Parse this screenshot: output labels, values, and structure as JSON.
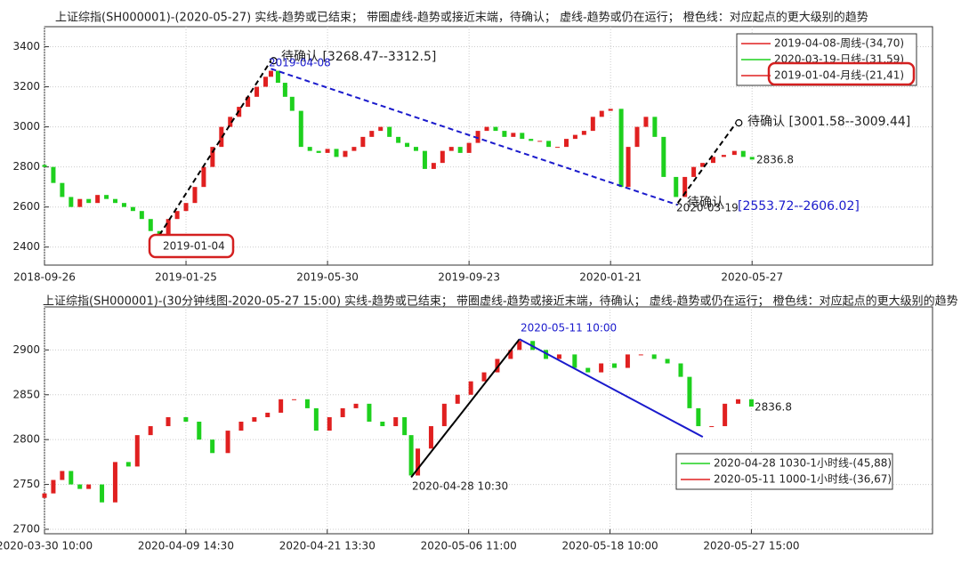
{
  "chart_data": [
    {
      "type": "candlestick",
      "title": "上证综指(SH000001)-(2020-05-27)  实线-趋势或已结束；  带圈虚线-趋势或接近末端，待确认；  虚线-趋势或仍在运行；  橙色线：对应起点的更大级别的趋势",
      "xlim": [
        0,
        502
      ],
      "ylim": [
        2310,
        3500
      ],
      "xticks": [
        {
          "value": 0,
          "label": "2018-09-26"
        },
        {
          "value": 80,
          "label": "2019-01-25"
        },
        {
          "value": 160,
          "label": "2019-05-30"
        },
        {
          "value": 240,
          "label": "2019-09-23"
        },
        {
          "value": 320,
          "label": "2020-01-21"
        },
        {
          "value": 400,
          "label": "2020-05-27"
        }
      ],
      "yticks": [
        2400,
        2600,
        2800,
        3000,
        3200,
        3400
      ],
      "grid": true,
      "up_color": "#e02020",
      "down_color": "#1ed01e",
      "x": [
        0,
        5,
        10,
        15,
        20,
        25,
        30,
        35,
        40,
        45,
        50,
        55,
        60,
        65,
        70,
        75,
        80,
        85,
        90,
        95,
        100,
        105,
        110,
        115,
        120,
        125,
        128,
        132,
        136,
        140,
        145,
        150,
        155,
        160,
        165,
        170,
        175,
        180,
        185,
        190,
        195,
        200,
        205,
        210,
        215,
        220,
        225,
        230,
        235,
        240,
        245,
        250,
        255,
        260,
        265,
        270,
        275,
        280,
        285,
        290,
        295,
        300,
        305,
        310,
        315,
        320,
        326,
        330,
        335,
        340,
        345,
        350,
        357,
        362,
        367,
        372,
        378,
        384,
        390,
        395,
        400
      ],
      "open": [
        2810,
        2800,
        2720,
        2650,
        2600,
        2640,
        2620,
        2660,
        2640,
        2620,
        2600,
        2580,
        2540,
        2480,
        2460,
        2540,
        2580,
        2620,
        2700,
        2800,
        2900,
        3000,
        3050,
        3100,
        3150,
        3200,
        3250,
        3280,
        3220,
        3150,
        3080,
        2900,
        2880,
        2870,
        2890,
        2850,
        2880,
        2900,
        2950,
        2980,
        3000,
        2950,
        2920,
        2900,
        2880,
        2790,
        2820,
        2880,
        2900,
        2870,
        2920,
        2980,
        3000,
        2980,
        2950,
        2970,
        2940,
        2930,
        2930,
        2900,
        2900,
        2940,
        2960,
        2980,
        3050,
        3080,
        3090,
        2700,
        2900,
        3000,
        3050,
        2950,
        2750,
        2650,
        2750,
        2800,
        2820,
        2850,
        2860,
        2880,
        2850
      ],
      "close": [
        2800,
        2720,
        2650,
        2600,
        2640,
        2620,
        2660,
        2640,
        2620,
        2600,
        2580,
        2540,
        2480,
        2460,
        2540,
        2580,
        2620,
        2700,
        2800,
        2900,
        3000,
        3050,
        3100,
        3150,
        3200,
        3250,
        3280,
        3220,
        3150,
        3080,
        2900,
        2880,
        2870,
        2890,
        2850,
        2880,
        2900,
        2950,
        2980,
        3000,
        2950,
        2920,
        2900,
        2880,
        2790,
        2820,
        2880,
        2900,
        2870,
        2920,
        2980,
        3000,
        2980,
        2950,
        2970,
        2940,
        2930,
        2930,
        2900,
        2900,
        2940,
        2960,
        2980,
        3050,
        3080,
        3090,
        2700,
        2900,
        3000,
        3050,
        2950,
        2750,
        2650,
        2750,
        2800,
        2820,
        2850,
        2860,
        2880,
        2850,
        2836.8
      ],
      "trend_lines": [
        {
          "color": "#000000",
          "dashed": true,
          "circle": true,
          "x": [
            65,
            128
          ],
          "y": [
            2460,
            3330
          ]
        },
        {
          "color": "#1a1acc",
          "dashed": true,
          "circle": false,
          "x": [
            128,
            358
          ],
          "y": [
            3290,
            2610
          ]
        },
        {
          "color": "#000000",
          "dashed": true,
          "circle": true,
          "x": [
            358,
            391
          ],
          "y": [
            2620,
            3020
          ]
        }
      ],
      "legend": [
        {
          "name": "2019-04-08-周线-(34,70)",
          "color": "#e02020"
        },
        {
          "name": "2020-03-19-日线-(31,59)",
          "color": "#1ed01e"
        },
        {
          "name": "2019-01-04-月线-(21,41)",
          "color": "#e02020"
        }
      ],
      "annotations": [
        "待确认 [3268.47--3312.5]",
        "2019-04-08",
        "待确认 [3001.58--3009.44]",
        "2836.8",
        "待确认",
        "2020-03-19",
        "[2553.72--2606.02]",
        "2019-01-04"
      ]
    },
    {
      "type": "candlestick",
      "title": "上证综指(SH000001)-(30分钟线图-2020-05-27 15:00) 实线-趋势或已结束；  带圈虚线-趋势或接近末端，待确认；  虚线-趋势或仍在运行；  橙色线：对应起点的更大级别的趋势",
      "xlim": [
        0,
        402
      ],
      "ylim": [
        2695,
        2948
      ],
      "xticks": [
        {
          "value": 0,
          "label": "2020-03-30 10:00"
        },
        {
          "value": 64,
          "label": "2020-04-09 14:30"
        },
        {
          "value": 128,
          "label": "2020-04-21 13:30"
        },
        {
          "value": 192,
          "label": "2020-05-06 11:00"
        },
        {
          "value": 256,
          "label": "2020-05-18 10:00"
        },
        {
          "value": 320,
          "label": "2020-05-27 15:00"
        }
      ],
      "yticks": [
        2700,
        2750,
        2800,
        2850,
        2900
      ],
      "grid": true,
      "up_color": "#e02020",
      "down_color": "#1ed01e",
      "x": [
        0,
        4,
        8,
        12,
        16,
        20,
        26,
        32,
        38,
        42,
        48,
        56,
        64,
        70,
        76,
        83,
        89,
        95,
        101,
        107,
        113,
        119,
        123,
        129,
        135,
        141,
        147,
        153,
        159,
        163,
        166,
        169,
        175,
        181,
        187,
        193,
        199,
        205,
        211,
        215,
        221,
        227,
        233,
        240,
        246,
        252,
        258,
        264,
        270,
        276,
        282,
        288,
        292,
        296,
        302,
        308,
        314,
        320
      ],
      "open": [
        2735,
        2740,
        2755,
        2765,
        2750,
        2745,
        2750,
        2730,
        2775,
        2770,
        2805,
        2815,
        2825,
        2820,
        2800,
        2785,
        2810,
        2820,
        2825,
        2830,
        2845,
        2845,
        2835,
        2810,
        2825,
        2835,
        2840,
        2820,
        2815,
        2825,
        2805,
        2760,
        2790,
        2815,
        2840,
        2850,
        2865,
        2875,
        2890,
        2900,
        2910,
        2900,
        2890,
        2895,
        2880,
        2875,
        2885,
        2880,
        2895,
        2895,
        2890,
        2885,
        2870,
        2835,
        2815,
        2815,
        2840,
        2845
      ],
      "close": [
        2740,
        2755,
        2765,
        2750,
        2745,
        2750,
        2730,
        2775,
        2770,
        2805,
        2815,
        2825,
        2820,
        2800,
        2785,
        2810,
        2820,
        2825,
        2830,
        2845,
        2845,
        2835,
        2810,
        2825,
        2835,
        2840,
        2820,
        2815,
        2825,
        2805,
        2760,
        2790,
        2815,
        2840,
        2850,
        2865,
        2875,
        2890,
        2900,
        2910,
        2900,
        2890,
        2895,
        2880,
        2875,
        2885,
        2880,
        2895,
        2895,
        2890,
        2885,
        2870,
        2835,
        2815,
        2815,
        2840,
        2845,
        2836.8
      ],
      "trend_lines": [
        {
          "color": "#000000",
          "dashed": false,
          "circle": false,
          "x": [
            166,
            215
          ],
          "y": [
            2758,
            2912
          ]
        },
        {
          "color": "#1a1acc",
          "dashed": false,
          "circle": false,
          "x": [
            215,
            298
          ],
          "y": [
            2912,
            2803
          ]
        }
      ],
      "legend": [
        {
          "name": "2020-04-28 1030-1小时线-(45,88)",
          "color": "#1ed01e"
        },
        {
          "name": "2020-05-11 1000-1小时线-(36,67)",
          "color": "#e02020"
        }
      ],
      "annotations": [
        "2020-05-11 10:00",
        "2020-04-28 10:30",
        "2836.8"
      ]
    }
  ]
}
